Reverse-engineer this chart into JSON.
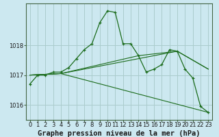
{
  "bg_color": "#cce8f0",
  "grid_color": "#aacccc",
  "line_color": "#1a6b1a",
  "xlabel": "Graphe pression niveau de la mer (hPa)",
  "xlabel_fontsize": 7.5,
  "ylim": [
    1015.5,
    1019.4
  ],
  "xlim": [
    -0.5,
    23.5
  ],
  "yticks": [
    1016,
    1017,
    1018
  ],
  "xticks": [
    0,
    1,
    2,
    3,
    4,
    5,
    6,
    7,
    8,
    9,
    10,
    11,
    12,
    13,
    14,
    15,
    16,
    17,
    18,
    19,
    20,
    21,
    22,
    23
  ],
  "tick_fontsize": 6,
  "series": [
    {
      "x": [
        0,
        1,
        2,
        3,
        4,
        5,
        6,
        7,
        8,
        9,
        10,
        11,
        12,
        13,
        14,
        15,
        16,
        17,
        18,
        19,
        20,
        21,
        22,
        23
      ],
      "y": [
        1016.7,
        1017.0,
        1017.0,
        1017.1,
        1017.1,
        1017.25,
        1017.55,
        1017.85,
        1018.05,
        1018.75,
        1019.15,
        1019.1,
        1018.05,
        1018.05,
        1017.65,
        1017.1,
        1017.2,
        1017.35,
        1017.85,
        1017.8,
        1017.2,
        1016.9,
        1015.95,
        1015.75
      ]
    },
    {
      "x": [
        0,
        4,
        23
      ],
      "y": [
        1017.0,
        1017.05,
        1015.75
      ]
    },
    {
      "x": [
        0,
        4,
        19,
        23
      ],
      "y": [
        1017.0,
        1017.05,
        1017.8,
        1017.2
      ]
    },
    {
      "x": [
        0,
        4,
        14,
        19,
        23
      ],
      "y": [
        1017.0,
        1017.05,
        1017.65,
        1017.8,
        1017.2
      ]
    }
  ]
}
